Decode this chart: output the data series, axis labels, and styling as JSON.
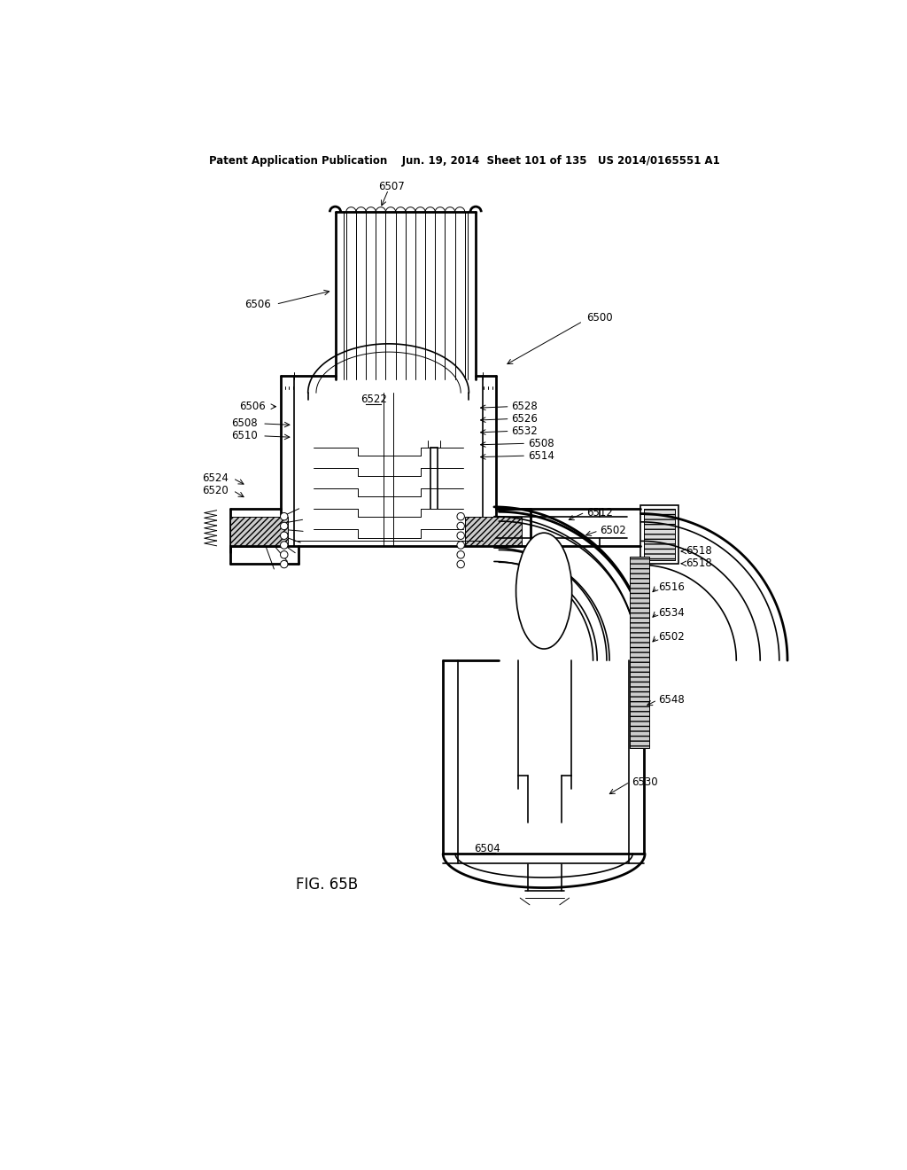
{
  "bg_color": "#ffffff",
  "line_color": "#000000",
  "header_text": "Patent Application Publication    Jun. 19, 2014  Sheet 101 of 135   US 2014/0165551 A1",
  "fig_label": "FIG. 65B",
  "lw_thin": 0.7,
  "lw_med": 1.2,
  "lw_thick": 2.0,
  "label_fontsize": 8.5
}
